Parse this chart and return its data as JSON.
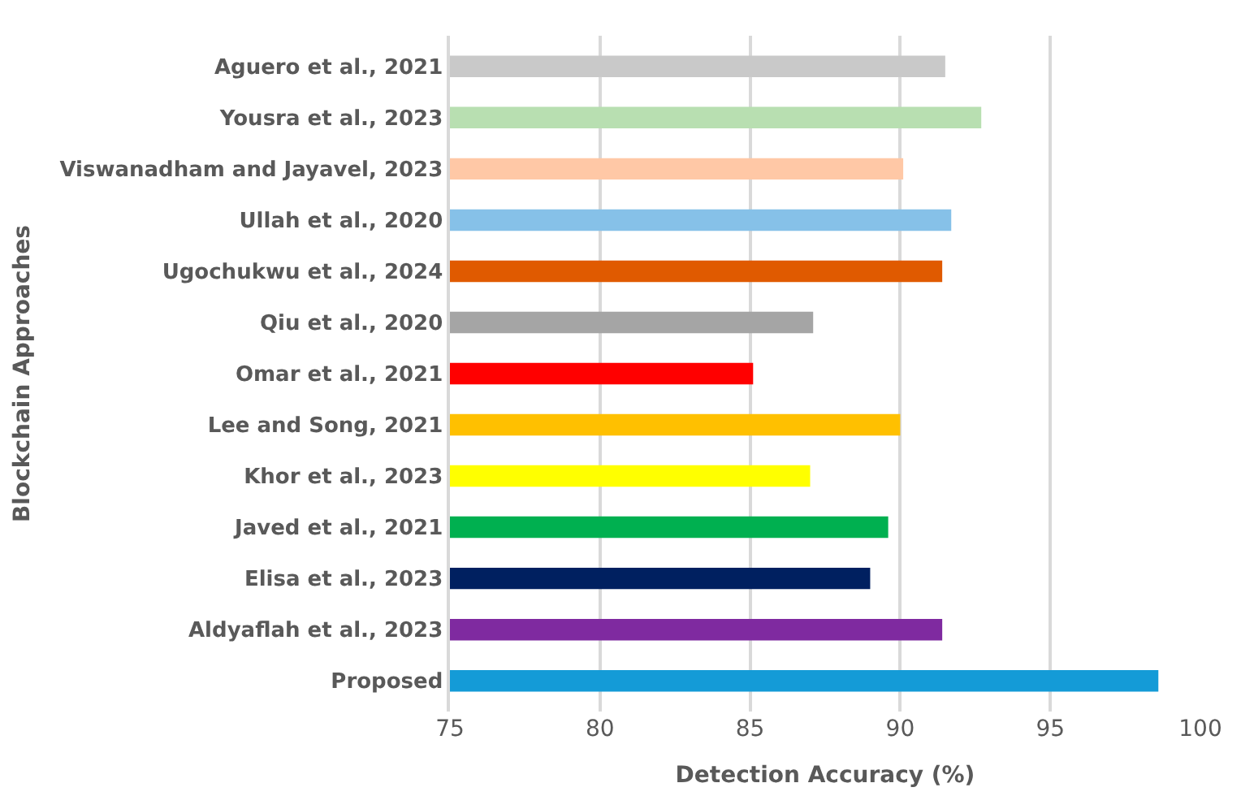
{
  "chart_data": {
    "type": "bar",
    "orientation": "horizontal",
    "xlabel": "Detection Accuracy (%)",
    "ylabel": "Blockchain Approaches",
    "categories": [
      "Aguero et al., 2021",
      "Yousra et al., 2023",
      "Viswanadham and Jayavel, 2023",
      "Ullah et al., 2020",
      "Ugochukwu et al., 2024",
      "Qiu et al., 2020",
      "Omar et al., 2021",
      "Lee and Song, 2021",
      "Khor et al., 2023",
      "Javed et al., 2021",
      "Elisa et al., 2023",
      "Aldyaflah et al., 2023",
      "Proposed"
    ],
    "values": [
      91.5,
      92.7,
      90.1,
      91.7,
      91.4,
      87.1,
      85.1,
      90.0,
      87.0,
      89.6,
      89.0,
      91.4,
      98.6
    ],
    "colors": [
      "#c9c9c9",
      "#b8dfb1",
      "#ffc8a6",
      "#86c1e8",
      "#e05a00",
      "#a5a5a5",
      "#ff0000",
      "#ffc000",
      "#ffff00",
      "#00b050",
      "#002060",
      "#7f2aa0",
      "#149bd7"
    ],
    "xlim": [
      75,
      100
    ],
    "xticks": [
      75,
      80,
      85,
      90,
      95,
      100
    ],
    "grid": "x",
    "legend": false
  }
}
